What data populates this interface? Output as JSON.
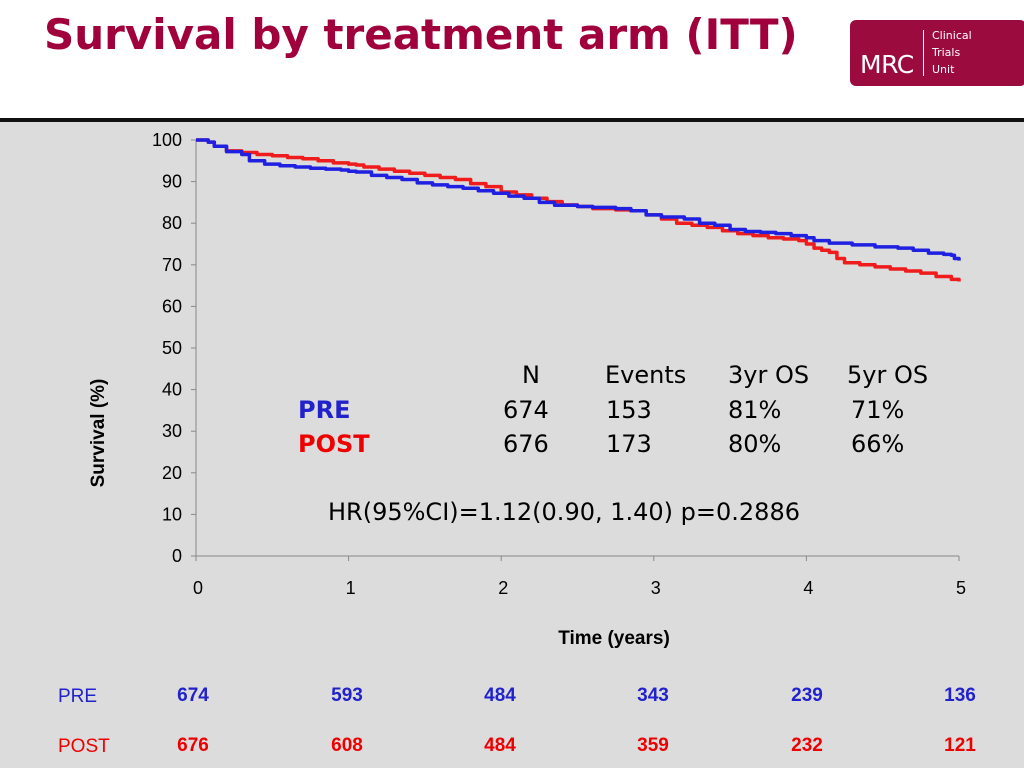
{
  "title": "Survival by treatment arm (ITT)",
  "logo": {
    "mark": "MRC",
    "lines": [
      "Clinical",
      "Trials",
      "Unit"
    ]
  },
  "chart_data": {
    "type": "line",
    "title": "",
    "xlabel": "Time (years)",
    "ylabel": "Survival (%)",
    "xlim": [
      0,
      5
    ],
    "ylim": [
      0,
      100
    ],
    "xticks": [
      0,
      1,
      2,
      3,
      4,
      5
    ],
    "yticks": [
      0,
      10,
      20,
      30,
      40,
      50,
      60,
      70,
      80,
      90,
      100
    ],
    "grid": false,
    "series": [
      {
        "name": "PRE",
        "color": "#2020e0",
        "points": [
          [
            0,
            100
          ],
          [
            0.08,
            99.5
          ],
          [
            0.12,
            98.5
          ],
          [
            0.2,
            97.2
          ],
          [
            0.3,
            96.5
          ],
          [
            0.35,
            95
          ],
          [
            0.45,
            94.2
          ],
          [
            0.55,
            93.8
          ],
          [
            0.65,
            93.5
          ],
          [
            0.75,
            93.2
          ],
          [
            0.85,
            93
          ],
          [
            0.95,
            92.8
          ],
          [
            1.0,
            92.5
          ],
          [
            1.05,
            92.3
          ],
          [
            1.15,
            91.5
          ],
          [
            1.25,
            91
          ],
          [
            1.35,
            90.5
          ],
          [
            1.45,
            89.7
          ],
          [
            1.55,
            89.2
          ],
          [
            1.65,
            88.8
          ],
          [
            1.75,
            88.4
          ],
          [
            1.85,
            87.8
          ],
          [
            1.95,
            87.2
          ],
          [
            2.05,
            86.5
          ],
          [
            2.15,
            86
          ],
          [
            2.25,
            85
          ],
          [
            2.35,
            84.3
          ],
          [
            2.5,
            84
          ],
          [
            2.6,
            83.8
          ],
          [
            2.75,
            83.5
          ],
          [
            2.85,
            83
          ],
          [
            2.95,
            82
          ],
          [
            3.05,
            81.5
          ],
          [
            3.2,
            81
          ],
          [
            3.3,
            80
          ],
          [
            3.4,
            79.5
          ],
          [
            3.5,
            78.5
          ],
          [
            3.6,
            78
          ],
          [
            3.7,
            77.8
          ],
          [
            3.8,
            77.5
          ],
          [
            3.9,
            77
          ],
          [
            4.0,
            76.5
          ],
          [
            4.05,
            75.8
          ],
          [
            4.15,
            75.2
          ],
          [
            4.3,
            74.8
          ],
          [
            4.45,
            74.3
          ],
          [
            4.6,
            74
          ],
          [
            4.7,
            73.5
          ],
          [
            4.8,
            72.8
          ],
          [
            4.9,
            72.5
          ],
          [
            4.95,
            72.3
          ],
          [
            4.97,
            71.5
          ],
          [
            5.0,
            71
          ]
        ]
      },
      {
        "name": "POST",
        "color": "#ee1c1c",
        "points": [
          [
            0,
            100
          ],
          [
            0.08,
            99.5
          ],
          [
            0.12,
            98.5
          ],
          [
            0.2,
            97.4
          ],
          [
            0.3,
            97
          ],
          [
            0.4,
            96.5
          ],
          [
            0.5,
            96.2
          ],
          [
            0.6,
            95.8
          ],
          [
            0.7,
            95.5
          ],
          [
            0.8,
            95
          ],
          [
            0.9,
            94.5
          ],
          [
            1.0,
            94.2
          ],
          [
            1.05,
            94
          ],
          [
            1.1,
            93.5
          ],
          [
            1.2,
            93
          ],
          [
            1.3,
            92.5
          ],
          [
            1.4,
            92
          ],
          [
            1.5,
            91.5
          ],
          [
            1.6,
            91
          ],
          [
            1.7,
            90.5
          ],
          [
            1.8,
            89.5
          ],
          [
            1.9,
            88.8
          ],
          [
            2.0,
            87.5
          ],
          [
            2.1,
            86.8
          ],
          [
            2.2,
            86
          ],
          [
            2.3,
            85.2
          ],
          [
            2.4,
            84.4
          ],
          [
            2.5,
            84
          ],
          [
            2.6,
            83.5
          ],
          [
            2.75,
            83.2
          ],
          [
            2.85,
            83
          ],
          [
            2.95,
            82
          ],
          [
            3.05,
            81
          ],
          [
            3.15,
            80
          ],
          [
            3.25,
            79.5
          ],
          [
            3.35,
            79
          ],
          [
            3.45,
            78.2
          ],
          [
            3.55,
            77.5
          ],
          [
            3.65,
            77
          ],
          [
            3.75,
            76.5
          ],
          [
            3.85,
            76.2
          ],
          [
            3.95,
            75.8
          ],
          [
            4.0,
            75
          ],
          [
            4.05,
            74
          ],
          [
            4.1,
            73.5
          ],
          [
            4.15,
            73
          ],
          [
            4.2,
            71.5
          ],
          [
            4.25,
            70.5
          ],
          [
            4.35,
            70
          ],
          [
            4.45,
            69.5
          ],
          [
            4.55,
            69
          ],
          [
            4.65,
            68.5
          ],
          [
            4.75,
            68
          ],
          [
            4.85,
            67.2
          ],
          [
            4.95,
            66.5
          ],
          [
            5.0,
            66
          ]
        ]
      }
    ]
  },
  "summary_table": {
    "headers": [
      "N",
      "Events",
      "3yr OS",
      "5yr OS"
    ],
    "rows": [
      {
        "arm": "PRE",
        "color": "#2222cc",
        "values": [
          "674",
          "153",
          "81%",
          "71%"
        ]
      },
      {
        "arm": "POST",
        "color": "#ee0000",
        "values": [
          "676",
          "173",
          "80%",
          "66%"
        ]
      }
    ]
  },
  "hazard_ratio": "HR(95%CI)=1.12(0.90, 1.40) p=0.2886",
  "at_risk": {
    "rows": [
      {
        "arm": "PRE",
        "color": "#2222cc",
        "values": [
          "674",
          "593",
          "484",
          "343",
          "239",
          "136"
        ]
      },
      {
        "arm": "POST",
        "color": "#ee0000",
        "values": [
          "676",
          "608",
          "484",
          "359",
          "232",
          "121"
        ]
      }
    ]
  }
}
